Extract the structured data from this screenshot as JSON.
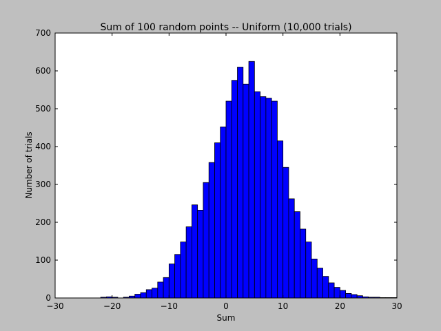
{
  "chart_data": {
    "type": "bar",
    "title": "Sum of 100 random points -- Uniform (10,000 trials)",
    "xlabel": "Sum",
    "ylabel": "Number of trials",
    "xlim": [
      -30,
      30
    ],
    "ylim": [
      0,
      700
    ],
    "xticks": [
      -30,
      -20,
      -10,
      0,
      10,
      20,
      30
    ],
    "yticks": [
      0,
      100,
      200,
      300,
      400,
      500,
      600,
      700
    ],
    "xtick_labels": [
      "−30",
      "−20",
      "−10",
      "0",
      "10",
      "20",
      "30"
    ],
    "ytick_labels": [
      "0",
      "100",
      "200",
      "300",
      "400",
      "500",
      "600",
      "700"
    ],
    "grid": false,
    "legend": false,
    "bin_start": -22,
    "bin_width": 1,
    "values": [
      2,
      3,
      2,
      0,
      2,
      5,
      10,
      14,
      22,
      26,
      42,
      54,
      90,
      115,
      148,
      188,
      246,
      232,
      305,
      358,
      410,
      452,
      520,
      575,
      610,
      565,
      625,
      545,
      532,
      528,
      520,
      415,
      345,
      262,
      228,
      182,
      148,
      103,
      79,
      57,
      40,
      28,
      20,
      12,
      9,
      6,
      3,
      2,
      2,
      1,
      1,
      1
    ],
    "bar_color": "#0000ff",
    "edge_color": "#000000"
  }
}
